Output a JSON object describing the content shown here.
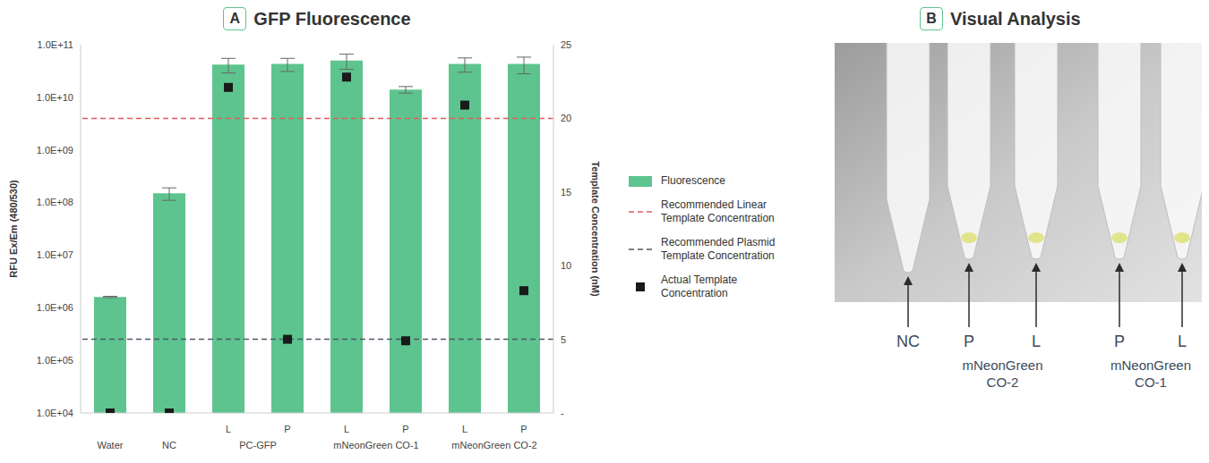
{
  "chart_data": {
    "type": "bar",
    "panel_label": "A",
    "title": "GFP Fluorescence",
    "categories": [
      "Water",
      "NC",
      "L",
      "P",
      "L",
      "P",
      "L",
      "P"
    ],
    "category_groups": [
      {
        "name": "PC-GFP",
        "from": 2,
        "to": 3
      },
      {
        "name": "mNeonGreen CO-1",
        "from": 4,
        "to": 5
      },
      {
        "name": "mNeonGreen CO-2",
        "from": 6,
        "to": 7
      }
    ],
    "ylabel": "RFU Ex/Em (480/530)",
    "y2label": "Template Concentration (nM)",
    "log": "y",
    "ylim": [
      10000,
      100000000000
    ],
    "yticks": [
      {
        "value": 10000,
        "label": "1.0E+04"
      },
      {
        "value": 100000,
        "label": "1.0E+05"
      },
      {
        "value": 1000000,
        "label": "1.0E+06"
      },
      {
        "value": 10000000,
        "label": "1.0E+07"
      },
      {
        "value": 100000000,
        "label": "1.0E+08"
      },
      {
        "value": 1000000000,
        "label": "1.0E+09"
      },
      {
        "value": 10000000000,
        "label": "1.0E+10"
      },
      {
        "value": 100000000000,
        "label": "1.0E+11"
      }
    ],
    "y2lim": [
      0,
      25
    ],
    "y2ticks": [
      {
        "value": 0,
        "label": "-"
      },
      5,
      10,
      15,
      20,
      25
    ],
    "series": [
      {
        "name": "Fluorescence",
        "type": "bar",
        "color": "#5dc48f",
        "values": [
          1600000,
          150000000,
          42000000000,
          43000000000,
          50000000000,
          14000000000,
          43000000000,
          43000000000
        ],
        "errors": [
          50000,
          40000000,
          13000000000,
          12000000000,
          16000000000,
          2000000000,
          13000000000,
          15000000000
        ]
      },
      {
        "name": "Actual Template Concentration",
        "type": "scatter",
        "axis": "y2",
        "color": "#1a1a1a",
        "marker": "square",
        "values": [
          0,
          0,
          22.1,
          5.0,
          22.8,
          4.9,
          20.9,
          8.3
        ]
      }
    ],
    "reference_lines": [
      {
        "name": "Recommended Linear Template Concentration",
        "value": 20,
        "axis": "y2",
        "color": "#e05c5c",
        "line_style": "dashed"
      },
      {
        "name": "Recommended Plasmid Template Concentration",
        "value": 5,
        "axis": "y2",
        "color": "#4d5a66",
        "line_style": "dashed"
      }
    ],
    "legend": "right",
    "grid": false
  },
  "photo": {
    "panel_label": "B",
    "title": "Visual Analysis",
    "tubes": [
      "NC",
      "P",
      "L",
      "P",
      "L"
    ],
    "tube_groups": [
      {
        "name": "mNeonGreen CO-2",
        "from": 1,
        "to": 2
      },
      {
        "name": "mNeonGreen CO-1",
        "from": 3,
        "to": 4
      }
    ]
  }
}
